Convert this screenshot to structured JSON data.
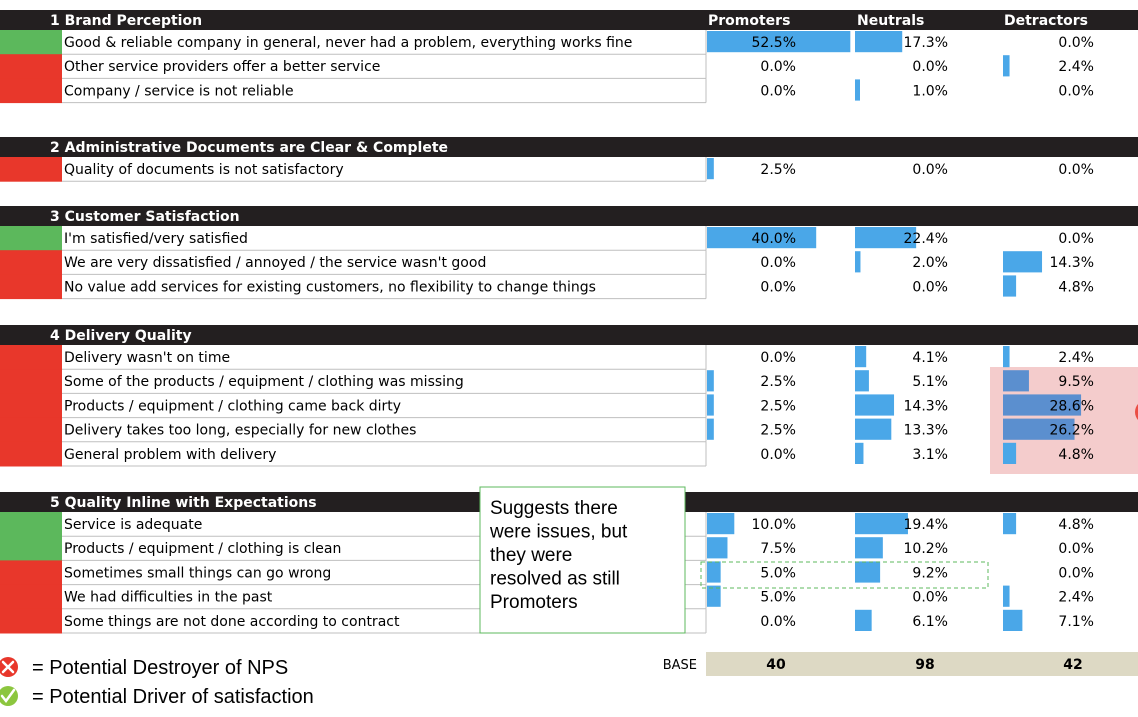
{
  "chart_data": {
    "type": "table",
    "columns": [
      "Promoters",
      "Neutrals",
      "Detractors"
    ],
    "sections": [
      {
        "title": "1 Brand Perception",
        "rows": [
          {
            "label": "Good & reliable company in general, never had a problem, everything works fine",
            "flag": "driver",
            "values": [
              52.5,
              17.3,
              0.0
            ],
            "display": [
              "52.5%",
              "17.3%",
              "0.0%"
            ]
          },
          {
            "label": "Other service providers offer a better service",
            "flag": "destroyer",
            "values": [
              0.0,
              0.0,
              2.4
            ],
            "display": [
              "0.0%",
              "0.0%",
              "2.4%"
            ]
          },
          {
            "label": "Company / service is not reliable",
            "flag": "destroyer",
            "values": [
              0.0,
              1.0,
              0.0
            ],
            "display": [
              "0.0%",
              "1.0%",
              "0.0%"
            ]
          }
        ]
      },
      {
        "title": "2 Administrative Documents are Clear & Complete",
        "rows": [
          {
            "label": "Quality of documents is not satisfactory",
            "flag": "destroyer",
            "values": [
              2.5,
              0.0,
              0.0
            ],
            "display": [
              "2.5%",
              "0.0%",
              "0.0%"
            ]
          }
        ]
      },
      {
        "title": "3 Customer Satisfaction",
        "rows": [
          {
            "label": "I'm satisfied/very satisfied",
            "flag": "driver",
            "values": [
              40.0,
              22.4,
              0.0
            ],
            "display": [
              "40.0%",
              "22.4%",
              "0.0%"
            ]
          },
          {
            "label": "We are very dissatisfied / annoyed / the service wasn't good",
            "flag": "destroyer",
            "values": [
              0.0,
              2.0,
              14.3
            ],
            "display": [
              "0.0%",
              "2.0%",
              "14.3%"
            ]
          },
          {
            "label": "No value add services for existing customers, no flexibility to change things",
            "flag": "destroyer",
            "values": [
              0.0,
              0.0,
              4.8
            ],
            "display": [
              "0.0%",
              "0.0%",
              "4.8%"
            ]
          }
        ]
      },
      {
        "title": "4 Delivery Quality",
        "rows": [
          {
            "label": "Delivery wasn't on time",
            "flag": "destroyer",
            "values": [
              0.0,
              4.1,
              2.4
            ],
            "display": [
              "0.0%",
              "4.1%",
              "2.4%"
            ]
          },
          {
            "label": "Some of the products / equipment / clothing was missing",
            "flag": "destroyer",
            "values": [
              2.5,
              5.1,
              9.5
            ],
            "display": [
              "2.5%",
              "5.1%",
              "9.5%"
            ]
          },
          {
            "label": "Products / equipment / clothing came back dirty",
            "flag": "destroyer",
            "values": [
              2.5,
              14.3,
              28.6
            ],
            "display": [
              "2.5%",
              "14.3%",
              "28.6%"
            ]
          },
          {
            "label": "Delivery takes too long, especially for new clothes",
            "flag": "destroyer",
            "values": [
              2.5,
              13.3,
              26.2
            ],
            "display": [
              "2.5%",
              "13.3%",
              "26.2%"
            ]
          },
          {
            "label": "General problem with delivery",
            "flag": "destroyer",
            "values": [
              0.0,
              3.1,
              4.8
            ],
            "display": [
              "0.0%",
              "3.1%",
              "4.8%"
            ]
          }
        ]
      },
      {
        "title": "5 Quality Inline with Expectations",
        "rows": [
          {
            "label": "Service is adequate",
            "flag": "driver",
            "values": [
              10.0,
              19.4,
              4.8
            ],
            "display": [
              "10.0%",
              "19.4%",
              "4.8%"
            ]
          },
          {
            "label": "Products / equipment / clothing is clean",
            "flag": "driver",
            "values": [
              7.5,
              10.2,
              0.0
            ],
            "display": [
              "7.5%",
              "10.2%",
              "0.0%"
            ]
          },
          {
            "label": "Sometimes small things can go wrong",
            "flag": "destroyer",
            "values": [
              5.0,
              9.2,
              0.0
            ],
            "display": [
              "5.0%",
              "9.2%",
              "0.0%"
            ]
          },
          {
            "label": "We had difficulties in the past",
            "flag": "destroyer",
            "values": [
              5.0,
              0.0,
              2.4
            ],
            "display": [
              "5.0%",
              "0.0%",
              "2.4%"
            ]
          },
          {
            "label": "Some things are not done according to contract",
            "flag": "destroyer",
            "values": [
              0.0,
              6.1,
              7.1
            ],
            "display": [
              "0.0%",
              "6.1%",
              "7.1%"
            ]
          }
        ]
      }
    ],
    "base": {
      "label": "BASE",
      "values": [
        40,
        98,
        42
      ]
    },
    "annotation": "Suggests there were issues, but they were resolved as still Promoters",
    "legend": [
      {
        "icon": "red-x-circle-icon",
        "text": "= Potential Destroyer of NPS"
      },
      {
        "icon": "green-check-circle-icon",
        "text": "= Potential Driver of satisfaction"
      }
    ],
    "colors": {
      "header_bg": "#231f20",
      "bar": "#4aa7e8",
      "driver_flag": "#5cb85c",
      "destroyer_flag": "#e8372b",
      "base_bg": "#ddd9c4",
      "highlight_bg": "#f4cccc",
      "highlight_bar": "#5b8fcf",
      "note_border": "#5cb85c",
      "dashed_border": "#5cb85c"
    }
  }
}
